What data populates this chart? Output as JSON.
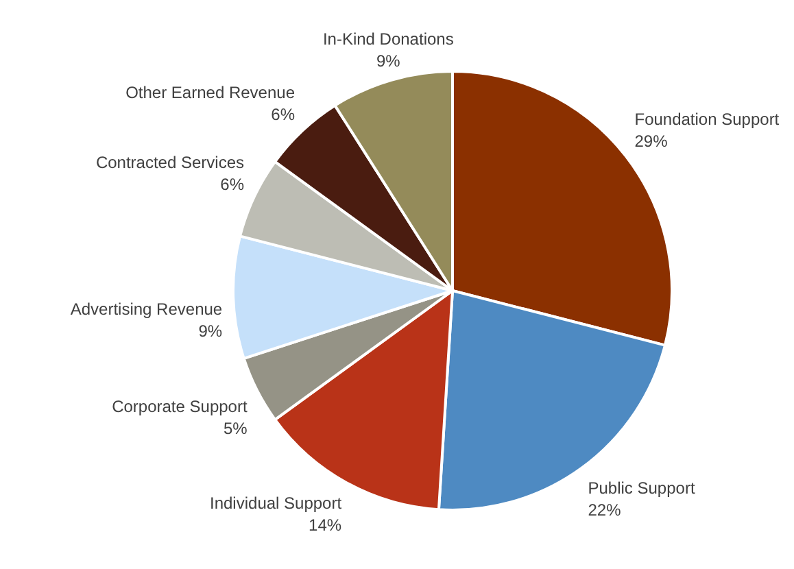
{
  "chart_data": {
    "type": "pie",
    "categories": [
      "Foundation Support",
      "Public Support",
      "Individual Support",
      "Corporate Support",
      "Advertising Revenue",
      "Contracted Services",
      "Other Earned Revenue",
      "In-Kind Donations"
    ],
    "values": [
      29,
      22,
      14,
      5,
      9,
      6,
      6,
      9
    ],
    "colors": [
      "#8b3000",
      "#4e8ac2",
      "#b93318",
      "#959386",
      "#c5e0fa",
      "#bdbdb4",
      "#4a1c10",
      "#948b5a"
    ],
    "value_labels": [
      "29%",
      "22%",
      "14%",
      "5%",
      "9%",
      "6%",
      "6%",
      "9%"
    ]
  }
}
